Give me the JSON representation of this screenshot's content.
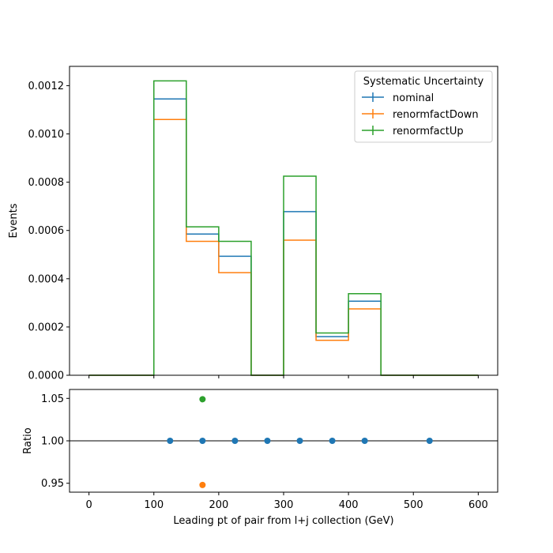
{
  "chart_data": [
    {
      "type": "line",
      "step": "post",
      "bin_edges": [
        0,
        100,
        150,
        200,
        250,
        300,
        350,
        400,
        450,
        600
      ],
      "xlim": [
        -30,
        630
      ],
      "ylim": [
        0,
        0.00128
      ],
      "ylabel": "Events",
      "yticks": [
        0,
        0.0002,
        0.0004,
        0.0006,
        0.0008,
        0.001,
        0.0012
      ],
      "ytick_labels": [
        "0.0000",
        "0.0002",
        "0.0004",
        "0.0006",
        "0.0008",
        "0.0010",
        "0.0012"
      ],
      "xticks": [
        0,
        100,
        200,
        300,
        400,
        500,
        600
      ],
      "legend": {
        "title": "Systematic Uncertainty",
        "placement": "top-right"
      },
      "series": [
        {
          "name": "nominal",
          "color": "#1f77b4",
          "values": [
            0,
            0.001145,
            0.000585,
            0.000493,
            0,
            0.000678,
            0.00016,
            0.000307,
            0
          ]
        },
        {
          "name": "renormfactDown",
          "color": "#ff7f0e",
          "values": [
            0,
            0.00106,
            0.000555,
            0.000425,
            0,
            0.00056,
            0.000145,
            0.000275,
            0
          ]
        },
        {
          "name": "renormfactUp",
          "color": "#2ca02c",
          "values": [
            0,
            0.00122,
            0.000615,
            0.000555,
            0,
            0.000825,
            0.000175,
            0.000338,
            0
          ]
        }
      ]
    },
    {
      "type": "scatter",
      "xlim": [
        -30,
        630
      ],
      "ylim": [
        0.9395,
        1.0605
      ],
      "xlabel": "Leading pt of pair from l+j collection (GeV)",
      "ylabel": "Ratio",
      "xticks": [
        0,
        100,
        200,
        300,
        400,
        500,
        600
      ],
      "yticks": [
        0.95,
        1.0,
        1.05
      ],
      "ytick_labels": [
        "0.95",
        "1.00",
        "1.05"
      ],
      "reference_line": 1.0,
      "series": [
        {
          "color": "#1f77b4",
          "x": [
            125,
            175,
            225,
            275,
            325,
            375,
            425,
            525
          ],
          "y": [
            1,
            1,
            1,
            1,
            1,
            1,
            1,
            1
          ]
        },
        {
          "color": "#ff7f0e",
          "x": [
            175
          ],
          "y": [
            0.948
          ]
        },
        {
          "color": "#2ca02c",
          "x": [
            175
          ],
          "y": [
            1.049
          ]
        }
      ]
    }
  ]
}
